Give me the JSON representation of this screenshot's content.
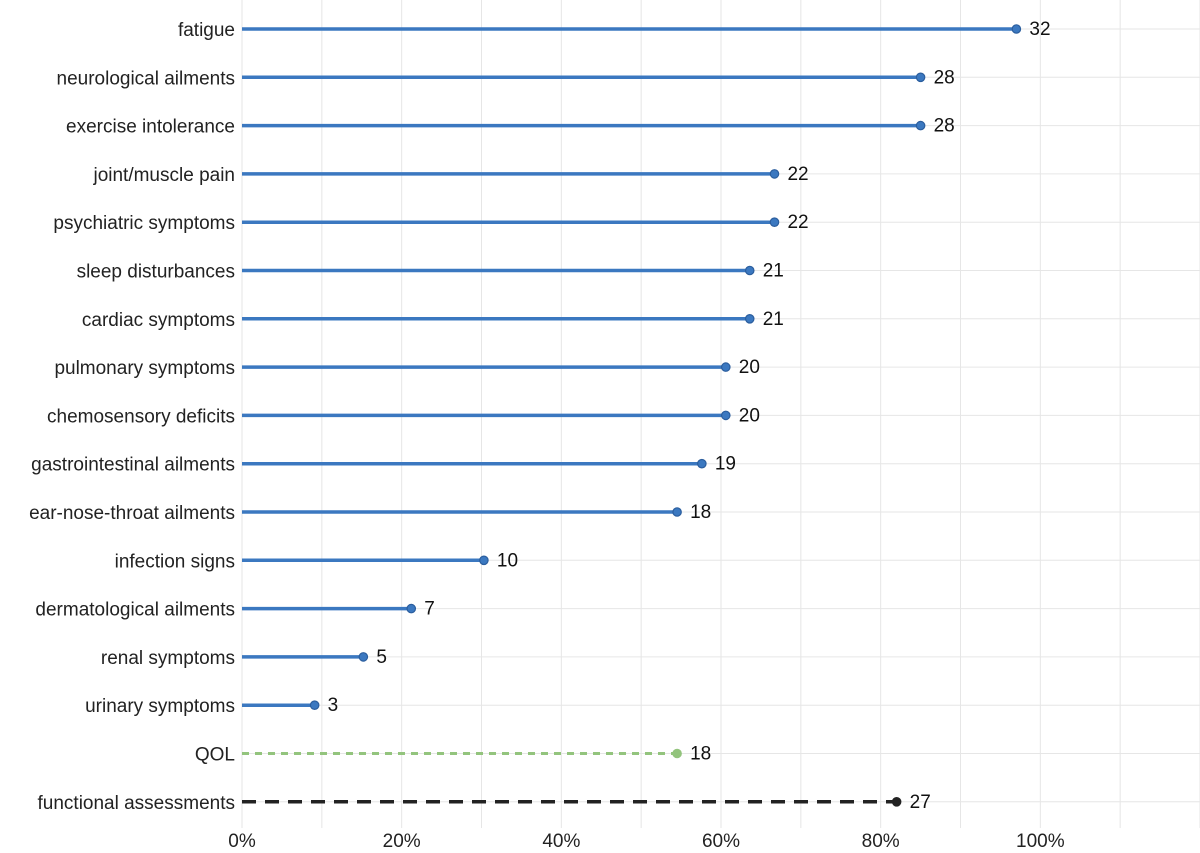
{
  "chart_data": {
    "type": "lollipop",
    "xlim": [
      0,
      1.2
    ],
    "x_ticks": [
      {
        "value": 0,
        "label": "0%"
      },
      {
        "value": 0.2,
        "label": "20%"
      },
      {
        "value": 0.4,
        "label": "40%"
      },
      {
        "value": 0.6,
        "label": "60%"
      },
      {
        "value": 0.8,
        "label": "80%"
      },
      {
        "value": 1.0,
        "label": "100%"
      }
    ],
    "grid": true,
    "colors": {
      "symptom": "#3b78c0",
      "symptom_edge": "#2b5e9e",
      "qol": "#93c47d",
      "functional": "#222222",
      "grid": "#e6e6e6"
    },
    "categories": [
      {
        "label": "fatigue",
        "value": 0.97,
        "count": "32",
        "group": "symptom"
      },
      {
        "label": "neurological ailments",
        "value": 0.85,
        "count": "28",
        "group": "symptom"
      },
      {
        "label": "exercise intolerance",
        "value": 0.85,
        "count": "28",
        "group": "symptom"
      },
      {
        "label": "joint/muscle pain",
        "value": 0.667,
        "count": "22",
        "group": "symptom"
      },
      {
        "label": "psychiatric symptoms",
        "value": 0.667,
        "count": "22",
        "group": "symptom"
      },
      {
        "label": "sleep disturbances",
        "value": 0.636,
        "count": "21",
        "group": "symptom"
      },
      {
        "label": "cardiac symptoms",
        "value": 0.636,
        "count": "21",
        "group": "symptom"
      },
      {
        "label": "pulmonary symptoms",
        "value": 0.606,
        "count": "20",
        "group": "symptom"
      },
      {
        "label": "chemosensory deficits",
        "value": 0.606,
        "count": "20",
        "group": "symptom"
      },
      {
        "label": "gastrointestinal ailments",
        "value": 0.576,
        "count": "19",
        "group": "symptom"
      },
      {
        "label": "ear-nose-throat ailments",
        "value": 0.545,
        "count": "18",
        "group": "symptom"
      },
      {
        "label": "infection signs",
        "value": 0.303,
        "count": "10",
        "group": "symptom"
      },
      {
        "label": "dermatological ailments",
        "value": 0.212,
        "count": "7",
        "group": "symptom"
      },
      {
        "label": "renal symptoms",
        "value": 0.152,
        "count": "5",
        "group": "symptom"
      },
      {
        "label": "urinary symptoms",
        "value": 0.091,
        "count": "3",
        "group": "symptom"
      },
      {
        "label": "QOL",
        "value": 0.545,
        "count": "18",
        "group": "qol"
      },
      {
        "label": "functional assessments",
        "value": 0.82,
        "count": "27",
        "group": "functional"
      }
    ]
  }
}
